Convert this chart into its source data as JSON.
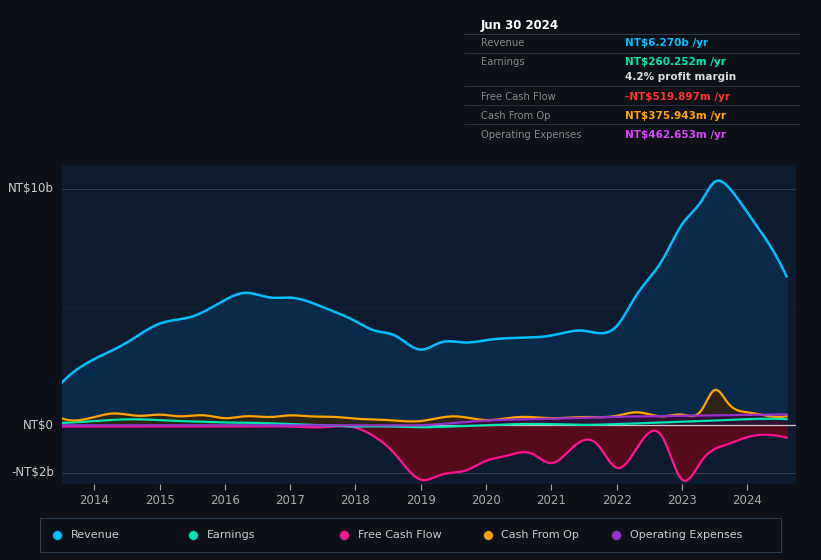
{
  "bg_color": "#0d1117",
  "plot_bg_color": "#0d1b2e",
  "grid_color": "#2a3a4a",
  "zero_line_color": "#c8c8c8",
  "colors": {
    "revenue": "#00bfff",
    "earnings": "#00e5b0",
    "free_cash_flow": "#ff1493",
    "cash_from_op": "#ffa500",
    "operating_expenses": "#9932cc"
  },
  "fill_revenue": "#0a2a4a",
  "fill_fcf": "#5c0a1a",
  "legend_items": [
    {
      "label": "Revenue",
      "color": "#00bfff"
    },
    {
      "label": "Earnings",
      "color": "#00e5b0"
    },
    {
      "label": "Free Cash Flow",
      "color": "#ff1493"
    },
    {
      "label": "Cash From Op",
      "color": "#ffa500"
    },
    {
      "label": "Operating Expenses",
      "color": "#9932cc"
    }
  ],
  "tooltip": {
    "date": "Jun 30 2024",
    "rows": [
      {
        "label": "Revenue",
        "value": "NT$6.270b /yr",
        "value_color": "#00bfff",
        "indent": false
      },
      {
        "label": "Earnings",
        "value": "NT$260.252m /yr",
        "value_color": "#00e5b0",
        "indent": false
      },
      {
        "label": "",
        "value": "4.2% profit margin",
        "value_color": "#dddddd",
        "indent": true
      },
      {
        "label": "Free Cash Flow",
        "value": "-NT$519.897m /yr",
        "value_color": "#ff3333",
        "indent": false
      },
      {
        "label": "Cash From Op",
        "value": "NT$375.943m /yr",
        "value_color": "#ffa500",
        "indent": false
      },
      {
        "label": "Operating Expenses",
        "value": "NT$462.653m /yr",
        "value_color": "#dd44ff",
        "indent": false
      }
    ]
  },
  "ylim": [
    -2.5,
    11.0
  ],
  "xlim": [
    2013.5,
    2024.75
  ],
  "xticks": [
    2014,
    2015,
    2016,
    2017,
    2018,
    2019,
    2020,
    2021,
    2022,
    2023,
    2024
  ],
  "revenue_x": [
    2013.5,
    2014.0,
    2014.5,
    2015.0,
    2015.5,
    2016.0,
    2016.3,
    2016.7,
    2017.0,
    2017.5,
    2018.0,
    2018.3,
    2018.6,
    2019.0,
    2019.3,
    2019.7,
    2020.0,
    2020.5,
    2021.0,
    2021.5,
    2022.0,
    2022.3,
    2022.7,
    2023.0,
    2023.3,
    2023.5,
    2023.7,
    2024.0,
    2024.3,
    2024.6
  ],
  "revenue_y": [
    1.8,
    2.8,
    3.5,
    4.3,
    4.6,
    5.3,
    5.6,
    5.4,
    5.4,
    5.0,
    4.4,
    4.0,
    3.8,
    3.2,
    3.5,
    3.5,
    3.6,
    3.7,
    3.8,
    4.0,
    4.2,
    5.5,
    7.0,
    8.5,
    9.5,
    10.3,
    10.1,
    9.0,
    7.8,
    6.3
  ],
  "earnings_x": [
    2013.5,
    2014.0,
    2014.5,
    2015.0,
    2015.3,
    2015.7,
    2016.0,
    2016.5,
    2017.0,
    2017.5,
    2018.0,
    2018.5,
    2019.0,
    2019.5,
    2020.0,
    2020.5,
    2021.0,
    2021.5,
    2022.0,
    2022.5,
    2023.0,
    2023.5,
    2024.0,
    2024.6
  ],
  "earnings_y": [
    0.1,
    0.18,
    0.25,
    0.22,
    0.18,
    0.15,
    0.12,
    0.1,
    0.05,
    0.0,
    -0.05,
    -0.05,
    -0.08,
    -0.05,
    0.0,
    0.05,
    0.05,
    0.02,
    0.05,
    0.1,
    0.15,
    0.2,
    0.26,
    0.26
  ],
  "fcf_x": [
    2013.5,
    2014.0,
    2014.5,
    2015.0,
    2015.5,
    2016.0,
    2016.5,
    2017.0,
    2017.5,
    2018.0,
    2018.3,
    2018.6,
    2019.0,
    2019.3,
    2019.7,
    2020.0,
    2020.3,
    2020.7,
    2021.0,
    2021.3,
    2021.7,
    2022.0,
    2022.3,
    2022.7,
    2023.0,
    2023.3,
    2023.7,
    2024.0,
    2024.3,
    2024.6
  ],
  "fcf_y": [
    -0.05,
    -0.05,
    -0.05,
    -0.05,
    -0.05,
    -0.05,
    -0.05,
    -0.05,
    -0.08,
    -0.1,
    -0.5,
    -1.2,
    -2.3,
    -2.1,
    -1.9,
    -1.5,
    -1.3,
    -1.2,
    -1.6,
    -1.0,
    -0.8,
    -1.8,
    -1.0,
    -0.5,
    -2.3,
    -1.5,
    -0.8,
    -0.5,
    -0.4,
    -0.52
  ],
  "cash_op_x": [
    2013.5,
    2014.0,
    2014.3,
    2014.7,
    2015.0,
    2015.3,
    2015.7,
    2016.0,
    2016.3,
    2016.7,
    2017.0,
    2017.3,
    2017.7,
    2018.0,
    2018.5,
    2019.0,
    2019.5,
    2020.0,
    2020.5,
    2021.0,
    2021.5,
    2022.0,
    2022.3,
    2022.7,
    2023.0,
    2023.3,
    2023.5,
    2023.7,
    2024.0,
    2024.3,
    2024.6
  ],
  "cash_op_y": [
    0.3,
    0.35,
    0.5,
    0.4,
    0.45,
    0.38,
    0.42,
    0.3,
    0.38,
    0.35,
    0.42,
    0.38,
    0.35,
    0.28,
    0.22,
    0.18,
    0.38,
    0.22,
    0.35,
    0.3,
    0.35,
    0.4,
    0.55,
    0.38,
    0.45,
    0.65,
    1.5,
    0.95,
    0.55,
    0.4,
    0.38
  ],
  "op_exp_x": [
    2013.5,
    2014.0,
    2015.0,
    2016.0,
    2017.0,
    2018.0,
    2018.5,
    2019.0,
    2019.5,
    2020.0,
    2020.5,
    2021.0,
    2021.5,
    2022.0,
    2022.5,
    2023.0,
    2023.5,
    2024.0,
    2024.6
  ],
  "op_exp_y": [
    0.0,
    0.0,
    0.0,
    0.0,
    0.0,
    0.0,
    0.0,
    0.0,
    0.1,
    0.2,
    0.25,
    0.28,
    0.32,
    0.36,
    0.38,
    0.4,
    0.42,
    0.44,
    0.46
  ]
}
